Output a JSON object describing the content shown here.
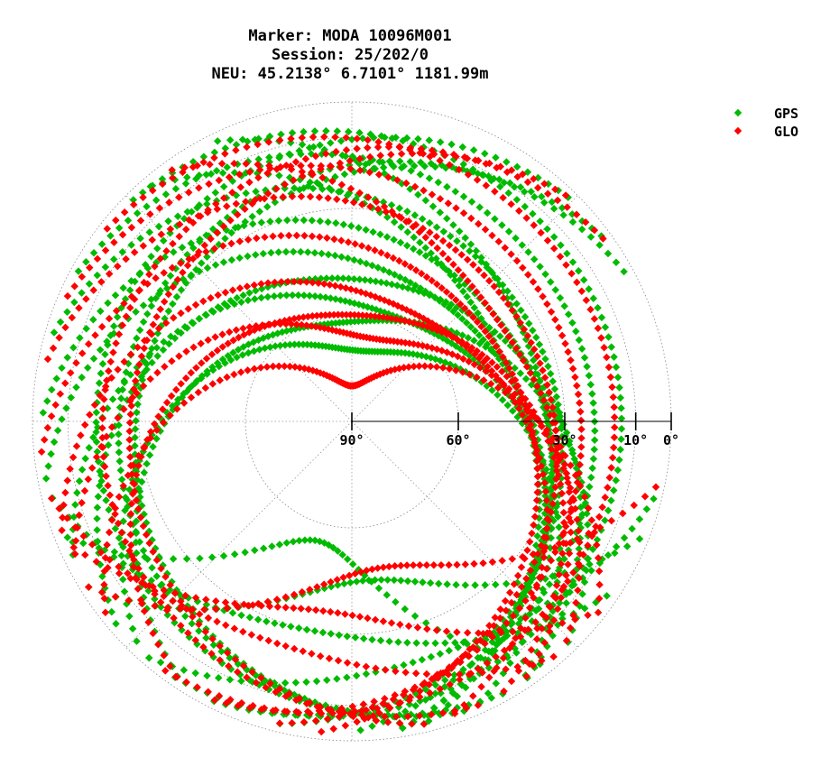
{
  "title": {
    "line1": "Marker: MODA 10096M001",
    "line2": "Session: 25/202/0",
    "line3": "NEU: 45.2138° 6.7101° 1181.99m"
  },
  "legend": [
    {
      "label": "GPS",
      "color": "#00bb00"
    },
    {
      "label": "GLO",
      "color": "#ff0000"
    }
  ],
  "chart_data": {
    "type": "scatter",
    "subtype": "polar-skyplot",
    "radial_axis": "elevation (deg)",
    "radial_range": [
      0,
      90
    ],
    "radial_ticks": [
      {
        "value": 90,
        "label": "90°"
      },
      {
        "value": 60,
        "label": "60°"
      },
      {
        "value": 30,
        "label": "30°"
      },
      {
        "value": 10,
        "label": "10°"
      },
      {
        "value": 0,
        "label": "0°"
      }
    ],
    "angular_axis": "azimuth (deg)",
    "grid": true,
    "legend_position": "top-right",
    "series": [
      {
        "name": "GPS",
        "color": "#00bb00",
        "tracks": [
          {
            "az_start": -140,
            "az_end": 150,
            "max_elev": 70
          },
          {
            "az_start": -120,
            "az_end": 160,
            "max_elev": 58
          },
          {
            "az_start": -105,
            "az_end": 175,
            "max_elev": 48
          },
          {
            "az_start": -95,
            "az_end": 185,
            "max_elev": 40
          },
          {
            "az_start": -80,
            "az_end": 200,
            "max_elev": 33
          },
          {
            "az_start": -70,
            "az_end": 215,
            "max_elev": 22
          },
          {
            "az_start": -60,
            "az_end": 230,
            "max_elev": 14
          },
          {
            "az_start": -150,
            "az_end": 140,
            "max_elev": 62
          },
          {
            "az_start": -135,
            "az_end": 150,
            "max_elev": 50
          },
          {
            "az_start": -45,
            "az_end": 170,
            "max_elev": 44
          },
          {
            "az_start": -30,
            "az_end": 175,
            "max_elev": 36
          },
          {
            "az_start": -200,
            "az_end": 60,
            "max_elev": 30
          },
          {
            "az_start": -210,
            "az_end": 70,
            "max_elev": 25
          },
          {
            "az_start": -220,
            "az_end": 55,
            "max_elev": 18
          },
          {
            "az_start": 140,
            "az_end": 250,
            "max_elev": 55
          },
          {
            "az_start": 110,
            "az_end": 240,
            "max_elev": 45
          },
          {
            "az_start": 120,
            "az_end": 260,
            "max_elev": 30
          },
          {
            "az_start": 100,
            "az_end": 225,
            "max_elev": 20
          }
        ]
      },
      {
        "name": "GLO",
        "color": "#ff0000",
        "tracks": [
          {
            "az_start": -130,
            "az_end": 130,
            "max_elev": 80
          },
          {
            "az_start": -120,
            "az_end": 140,
            "max_elev": 66
          },
          {
            "az_start": -115,
            "az_end": 165,
            "max_elev": 55
          },
          {
            "az_start": -100,
            "az_end": 190,
            "max_elev": 45
          },
          {
            "az_start": -85,
            "az_end": 200,
            "max_elev": 35
          },
          {
            "az_start": -75,
            "az_end": 215,
            "max_elev": 26
          },
          {
            "az_start": -65,
            "az_end": 230,
            "max_elev": 16
          },
          {
            "az_start": -150,
            "az_end": 155,
            "max_elev": 60
          },
          {
            "az_start": -40,
            "az_end": 150,
            "max_elev": 40
          },
          {
            "az_start": -200,
            "az_end": 50,
            "max_elev": 28
          },
          {
            "az_start": -215,
            "az_end": 65,
            "max_elev": 20
          },
          {
            "az_start": 100,
            "az_end": 240,
            "max_elev": 48
          },
          {
            "az_start": 125,
            "az_end": 250,
            "max_elev": 36
          },
          {
            "az_start": 135,
            "az_end": 260,
            "max_elev": 24
          }
        ]
      }
    ]
  }
}
